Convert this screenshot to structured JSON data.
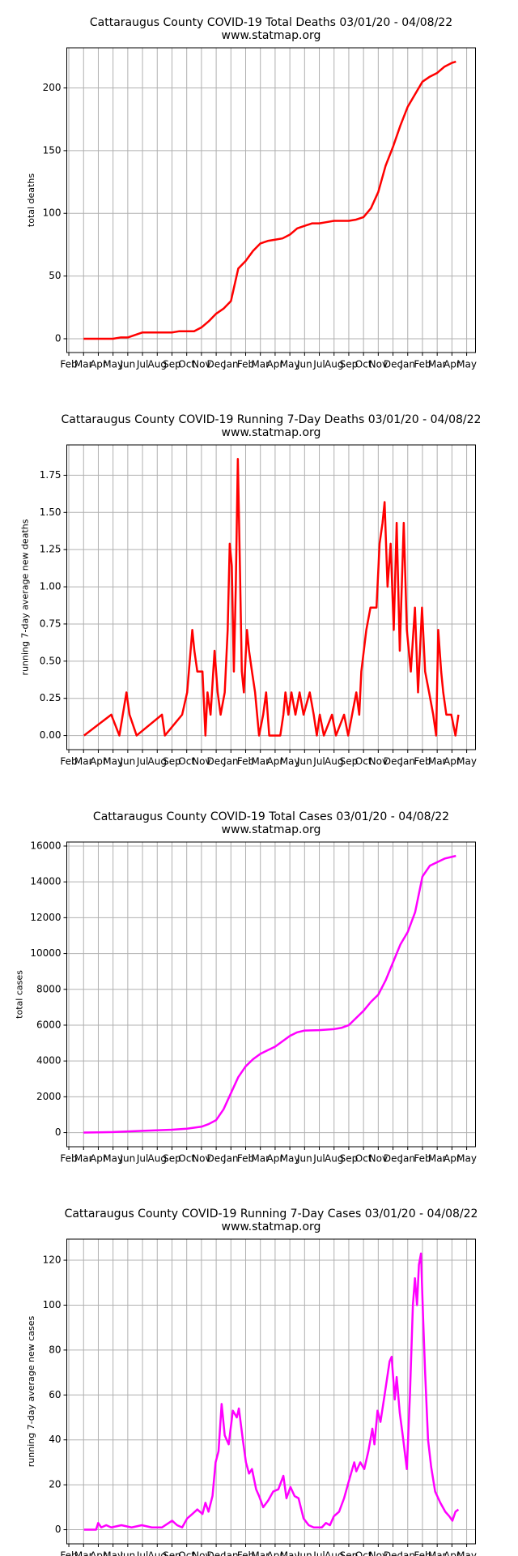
{
  "chart_data": [
    {
      "type": "line",
      "title": "Cattaraugus County COVID-19 Total Deaths 03/01/20 - 04/08/22",
      "subtitle": "www.statmap.org",
      "ylabel": "total deaths",
      "color": "#ff0000",
      "grid": true,
      "xlim": [
        -0.14,
        27.6
      ],
      "xticks": [
        {
          "value": 0,
          "label": "Feb"
        },
        {
          "value": 1,
          "label": "Mar"
        },
        {
          "value": 2,
          "label": "Apr"
        },
        {
          "value": 3,
          "label": "May"
        },
        {
          "value": 4,
          "label": "Jun"
        },
        {
          "value": 5,
          "label": "Jul"
        },
        {
          "value": 6,
          "label": "Aug"
        },
        {
          "value": 7,
          "label": "Sep"
        },
        {
          "value": 8,
          "label": "Oct"
        },
        {
          "value": 9,
          "label": "Nov"
        },
        {
          "value": 10,
          "label": "Dec"
        },
        {
          "value": 11,
          "label": "Jan"
        },
        {
          "value": 12,
          "label": "Feb"
        },
        {
          "value": 13,
          "label": "Mar"
        },
        {
          "value": 14,
          "label": "Apr"
        },
        {
          "value": 15,
          "label": "May"
        },
        {
          "value": 16,
          "label": "Jun"
        },
        {
          "value": 17,
          "label": "Jul"
        },
        {
          "value": 18,
          "label": "Aug"
        },
        {
          "value": 19,
          "label": "Sep"
        },
        {
          "value": 20,
          "label": "Oct"
        },
        {
          "value": 21,
          "label": "Nov"
        },
        {
          "value": 22,
          "label": "Dec"
        },
        {
          "value": 23,
          "label": "Jan"
        },
        {
          "value": 24,
          "label": "Feb"
        },
        {
          "value": 25,
          "label": "Mar"
        },
        {
          "value": 26,
          "label": "Apr"
        },
        {
          "value": 27,
          "label": "May"
        }
      ],
      "ylim": [
        -11,
        232
      ],
      "yticks": [
        0,
        50,
        100,
        150,
        200
      ],
      "x": [
        1,
        2,
        3,
        3.5,
        4,
        4.5,
        5,
        6,
        7,
        7.5,
        8,
        8.5,
        9,
        9.5,
        10,
        10.5,
        11,
        11.5,
        12,
        12.5,
        13,
        13.5,
        14,
        14.5,
        15,
        15.5,
        16,
        16.5,
        17,
        17.5,
        18,
        18.5,
        19,
        19.5,
        20,
        20.5,
        21,
        21.5,
        22,
        22.5,
        23,
        23.5,
        24,
        24.5,
        25,
        25.5,
        26,
        26.27
      ],
      "values": [
        0,
        0,
        0,
        1,
        1,
        3,
        5,
        5,
        5,
        6,
        6,
        6,
        9,
        14,
        20,
        24,
        30,
        56,
        62,
        70,
        76,
        78,
        79,
        80,
        83,
        88,
        90,
        92,
        92,
        93,
        94,
        94,
        94,
        95,
        97,
        104,
        117,
        138,
        153,
        170,
        185,
        195,
        205,
        209,
        212,
        217,
        220,
        221
      ]
    },
    {
      "type": "line",
      "title": "Cattaraugus County COVID-19 Running 7-Day Deaths 03/01/20 - 04/08/22",
      "subtitle": "www.statmap.org",
      "ylabel": "running 7-day average new deaths",
      "color": "#ff0000",
      "grid": true,
      "xlim": [
        -0.14,
        27.6
      ],
      "xticks": [
        {
          "value": 0,
          "label": "Feb"
        },
        {
          "value": 1,
          "label": "Mar"
        },
        {
          "value": 2,
          "label": "Apr"
        },
        {
          "value": 3,
          "label": "May"
        },
        {
          "value": 4,
          "label": "Jun"
        },
        {
          "value": 5,
          "label": "Jul"
        },
        {
          "value": 6,
          "label": "Aug"
        },
        {
          "value": 7,
          "label": "Sep"
        },
        {
          "value": 8,
          "label": "Oct"
        },
        {
          "value": 9,
          "label": "Nov"
        },
        {
          "value": 10,
          "label": "Dec"
        },
        {
          "value": 11,
          "label": "Jan"
        },
        {
          "value": 12,
          "label": "Feb"
        },
        {
          "value": 13,
          "label": "Mar"
        },
        {
          "value": 14,
          "label": "Apr"
        },
        {
          "value": 15,
          "label": "May"
        },
        {
          "value": 16,
          "label": "Jun"
        },
        {
          "value": 17,
          "label": "Jul"
        },
        {
          "value": 18,
          "label": "Aug"
        },
        {
          "value": 19,
          "label": "Sep"
        },
        {
          "value": 20,
          "label": "Oct"
        },
        {
          "value": 21,
          "label": "Nov"
        },
        {
          "value": 22,
          "label": "Dec"
        },
        {
          "value": 23,
          "label": "Jan"
        },
        {
          "value": 24,
          "label": "Feb"
        },
        {
          "value": 25,
          "label": "Mar"
        },
        {
          "value": 26,
          "label": "Apr"
        },
        {
          "value": 27,
          "label": "May"
        }
      ],
      "ylim": [
        -0.095,
        1.954
      ],
      "yticks": [
        {
          "value": 0,
          "label": "0.00"
        },
        0.25,
        {
          "value": 0.5,
          "label": "0.50"
        },
        0.75,
        {
          "value": 1,
          "label": "1.00"
        },
        1.25,
        {
          "value": 1.5,
          "label": "1.50"
        },
        1.75
      ],
      "x": [
        1.03,
        2.88,
        3.43,
        3.91,
        4.12,
        4.6,
        6.32,
        6.52,
        7.69,
        8.03,
        8.38,
        8.52,
        8.72,
        9.07,
        9.27,
        9.41,
        9.62,
        9.89,
        10.1,
        10.3,
        10.58,
        10.78,
        10.92,
        11.06,
        11.2,
        11.33,
        11.47,
        11.61,
        11.74,
        11.88,
        12.09,
        12.23,
        12.43,
        12.64,
        12.91,
        13.19,
        13.39,
        13.6,
        14.35,
        14.56,
        14.7,
        14.9,
        15.11,
        15.38,
        15.66,
        15.93,
        16.35,
        16.62,
        16.83,
        17.03,
        17.31,
        17.86,
        18.13,
        18.68,
        18.96,
        19.51,
        19.71,
        19.85,
        20.19,
        20.47,
        20.88,
        21.09,
        21.29,
        21.43,
        21.63,
        21.84,
        22.05,
        22.25,
        22.46,
        22.73,
        22.94,
        23.21,
        23.49,
        23.7,
        23.97,
        24.18,
        24.45,
        24.73,
        24.93,
        25.07,
        25.27,
        25.41,
        25.62,
        25.96,
        26.24,
        26.44
      ],
      "values": [
        0,
        0.14,
        0,
        0.29,
        0.14,
        0,
        0.14,
        0,
        0.14,
        0.29,
        0.71,
        0.57,
        0.43,
        0.43,
        0,
        0.29,
        0.14,
        0.57,
        0.29,
        0.14,
        0.29,
        0.71,
        1.29,
        1.14,
        0.43,
        1.0,
        1.86,
        1.14,
        0.43,
        0.29,
        0.71,
        0.57,
        0.43,
        0.29,
        0,
        0.14,
        0.29,
        0,
        0,
        0.14,
        0.29,
        0.14,
        0.29,
        0.14,
        0.29,
        0.14,
        0.29,
        0.14,
        0,
        0.14,
        0,
        0.14,
        0,
        0.14,
        0,
        0.29,
        0.14,
        0.43,
        0.71,
        0.86,
        0.86,
        1.29,
        1.43,
        1.57,
        1.0,
        1.29,
        0.71,
        1.43,
        0.57,
        1.43,
        0.71,
        0.43,
        0.86,
        0.29,
        0.86,
        0.43,
        0.29,
        0.14,
        0,
        0.71,
        0.43,
        0.29,
        0.14,
        0.14,
        0,
        0.14
      ]
    },
    {
      "type": "line",
      "title": "Cattaraugus County COVID-19 Total Cases 03/01/20 - 04/08/22",
      "subtitle": "www.statmap.org",
      "ylabel": "total cases",
      "color": "#ff00ff",
      "grid": true,
      "xlim": [
        -0.14,
        27.6
      ],
      "xticks": [
        {
          "value": 0,
          "label": "Feb"
        },
        {
          "value": 1,
          "label": "Mar"
        },
        {
          "value": 2,
          "label": "Apr"
        },
        {
          "value": 3,
          "label": "May"
        },
        {
          "value": 4,
          "label": "Jun"
        },
        {
          "value": 5,
          "label": "Jul"
        },
        {
          "value": 6,
          "label": "Aug"
        },
        {
          "value": 7,
          "label": "Sep"
        },
        {
          "value": 8,
          "label": "Oct"
        },
        {
          "value": 9,
          "label": "Nov"
        },
        {
          "value": 10,
          "label": "Dec"
        },
        {
          "value": 11,
          "label": "Jan"
        },
        {
          "value": 12,
          "label": "Feb"
        },
        {
          "value": 13,
          "label": "Mar"
        },
        {
          "value": 14,
          "label": "Apr"
        },
        {
          "value": 15,
          "label": "May"
        },
        {
          "value": 16,
          "label": "Jun"
        },
        {
          "value": 17,
          "label": "Jul"
        },
        {
          "value": 18,
          "label": "Aug"
        },
        {
          "value": 19,
          "label": "Sep"
        },
        {
          "value": 20,
          "label": "Oct"
        },
        {
          "value": 21,
          "label": "Nov"
        },
        {
          "value": 22,
          "label": "Dec"
        },
        {
          "value": 23,
          "label": "Jan"
        },
        {
          "value": 24,
          "label": "Feb"
        },
        {
          "value": 25,
          "label": "Mar"
        },
        {
          "value": 26,
          "label": "Apr"
        },
        {
          "value": 27,
          "label": "May"
        }
      ],
      "ylim": [
        -789,
        16225
      ],
      "yticks": [
        0,
        2000,
        4000,
        6000,
        8000,
        10000,
        12000,
        14000,
        16000
      ],
      "x": [
        1,
        3,
        5,
        7,
        8,
        9,
        9.5,
        10,
        10.5,
        11,
        11.5,
        12,
        12.5,
        13,
        13.5,
        14,
        14.5,
        15,
        15.5,
        16,
        17,
        18,
        18.5,
        19,
        19.5,
        20,
        20.5,
        21,
        21.5,
        22,
        22.5,
        23,
        23.5,
        24,
        24.5,
        25,
        25.5,
        26,
        26.27
      ],
      "values": [
        0,
        30,
        100,
        160,
        220,
        330,
        480,
        700,
        1300,
        2200,
        3100,
        3700,
        4100,
        4400,
        4600,
        4800,
        5100,
        5400,
        5600,
        5700,
        5720,
        5780,
        5850,
        6000,
        6400,
        6800,
        7300,
        7700,
        8500,
        9500,
        10500,
        11200,
        12300,
        14300,
        14900,
        15100,
        15300,
        15400,
        15450
      ]
    },
    {
      "type": "line",
      "title": "Cattaraugus County COVID-19 Running 7-Day Cases 03/01/20 - 04/08/22",
      "subtitle": "www.statmap.org",
      "ylabel": "running 7-day average new cases",
      "color": "#ff00ff",
      "grid": true,
      "xlim": [
        -0.14,
        27.6
      ],
      "xticks": [
        {
          "value": 0,
          "label": "Feb"
        },
        {
          "value": 1,
          "label": "Mar"
        },
        {
          "value": 2,
          "label": "Apr"
        },
        {
          "value": 3,
          "label": "May"
        },
        {
          "value": 4,
          "label": "Jun"
        },
        {
          "value": 5,
          "label": "Jul"
        },
        {
          "value": 6,
          "label": "Aug"
        },
        {
          "value": 7,
          "label": "Sep"
        },
        {
          "value": 8,
          "label": "Oct"
        },
        {
          "value": 9,
          "label": "Nov"
        },
        {
          "value": 10,
          "label": "Dec"
        },
        {
          "value": 11,
          "label": "Jan"
        },
        {
          "value": 12,
          "label": "Feb"
        },
        {
          "value": 13,
          "label": "Mar"
        },
        {
          "value": 14,
          "label": "Apr"
        },
        {
          "value": 15,
          "label": "May"
        },
        {
          "value": 16,
          "label": "Jun"
        },
        {
          "value": 17,
          "label": "Jul"
        },
        {
          "value": 18,
          "label": "Aug"
        },
        {
          "value": 19,
          "label": "Sep"
        },
        {
          "value": 20,
          "label": "Oct"
        },
        {
          "value": 21,
          "label": "Nov"
        },
        {
          "value": 22,
          "label": "Dec"
        },
        {
          "value": 23,
          "label": "Jan"
        },
        {
          "value": 24,
          "label": "Feb"
        },
        {
          "value": 25,
          "label": "Mar"
        },
        {
          "value": 26,
          "label": "Apr"
        },
        {
          "value": 27,
          "label": "May"
        }
      ],
      "ylim": [
        -6.3,
        129.4
      ],
      "yticks": [
        0,
        20,
        40,
        60,
        80,
        100,
        120
      ],
      "x": [
        1.03,
        1.85,
        1.99,
        2.2,
        2.54,
        2.88,
        3.57,
        4.26,
        4.95,
        5.63,
        6.32,
        7.01,
        7.35,
        7.69,
        8.03,
        8.38,
        8.72,
        9.07,
        9.27,
        9.48,
        9.75,
        9.96,
        10.16,
        10.37,
        10.58,
        10.85,
        11.13,
        11.4,
        11.54,
        11.81,
        12.02,
        12.23,
        12.43,
        12.71,
        12.91,
        13.19,
        13.53,
        13.87,
        14.22,
        14.56,
        14.77,
        15.04,
        15.32,
        15.59,
        15.93,
        16.28,
        16.62,
        17.17,
        17.45,
        17.72,
        17.99,
        18.34,
        18.68,
        19.02,
        19.37,
        19.51,
        19.78,
        20.05,
        20.33,
        20.6,
        20.74,
        20.95,
        21.15,
        21.43,
        21.77,
        21.91,
        22.12,
        22.25,
        22.46,
        22.66,
        22.94,
        23.15,
        23.35,
        23.49,
        23.63,
        23.76,
        23.9,
        24.04,
        24.18,
        24.38,
        24.59,
        24.86,
        25.21,
        25.55,
        25.82,
        26.03,
        26.24,
        26.44
      ],
      "values": [
        0,
        0,
        3,
        1,
        2,
        1,
        2,
        1,
        2,
        1,
        1,
        4,
        2,
        1,
        5,
        7,
        9,
        7,
        12,
        8,
        15,
        30,
        35,
        56,
        42,
        38,
        53,
        50,
        54,
        40,
        30,
        25,
        27,
        18,
        15,
        10,
        13,
        17,
        18,
        24,
        14,
        19,
        15,
        14,
        5,
        2,
        1,
        1,
        3,
        2,
        6,
        8,
        14,
        22,
        30,
        26,
        30,
        27,
        35,
        45,
        38,
        53,
        48,
        60,
        75,
        77,
        58,
        68,
        52,
        42,
        27,
        60,
        100,
        112,
        100,
        118,
        123,
        95,
        70,
        40,
        28,
        17,
        12,
        8,
        6,
        4,
        8,
        9
      ]
    }
  ]
}
